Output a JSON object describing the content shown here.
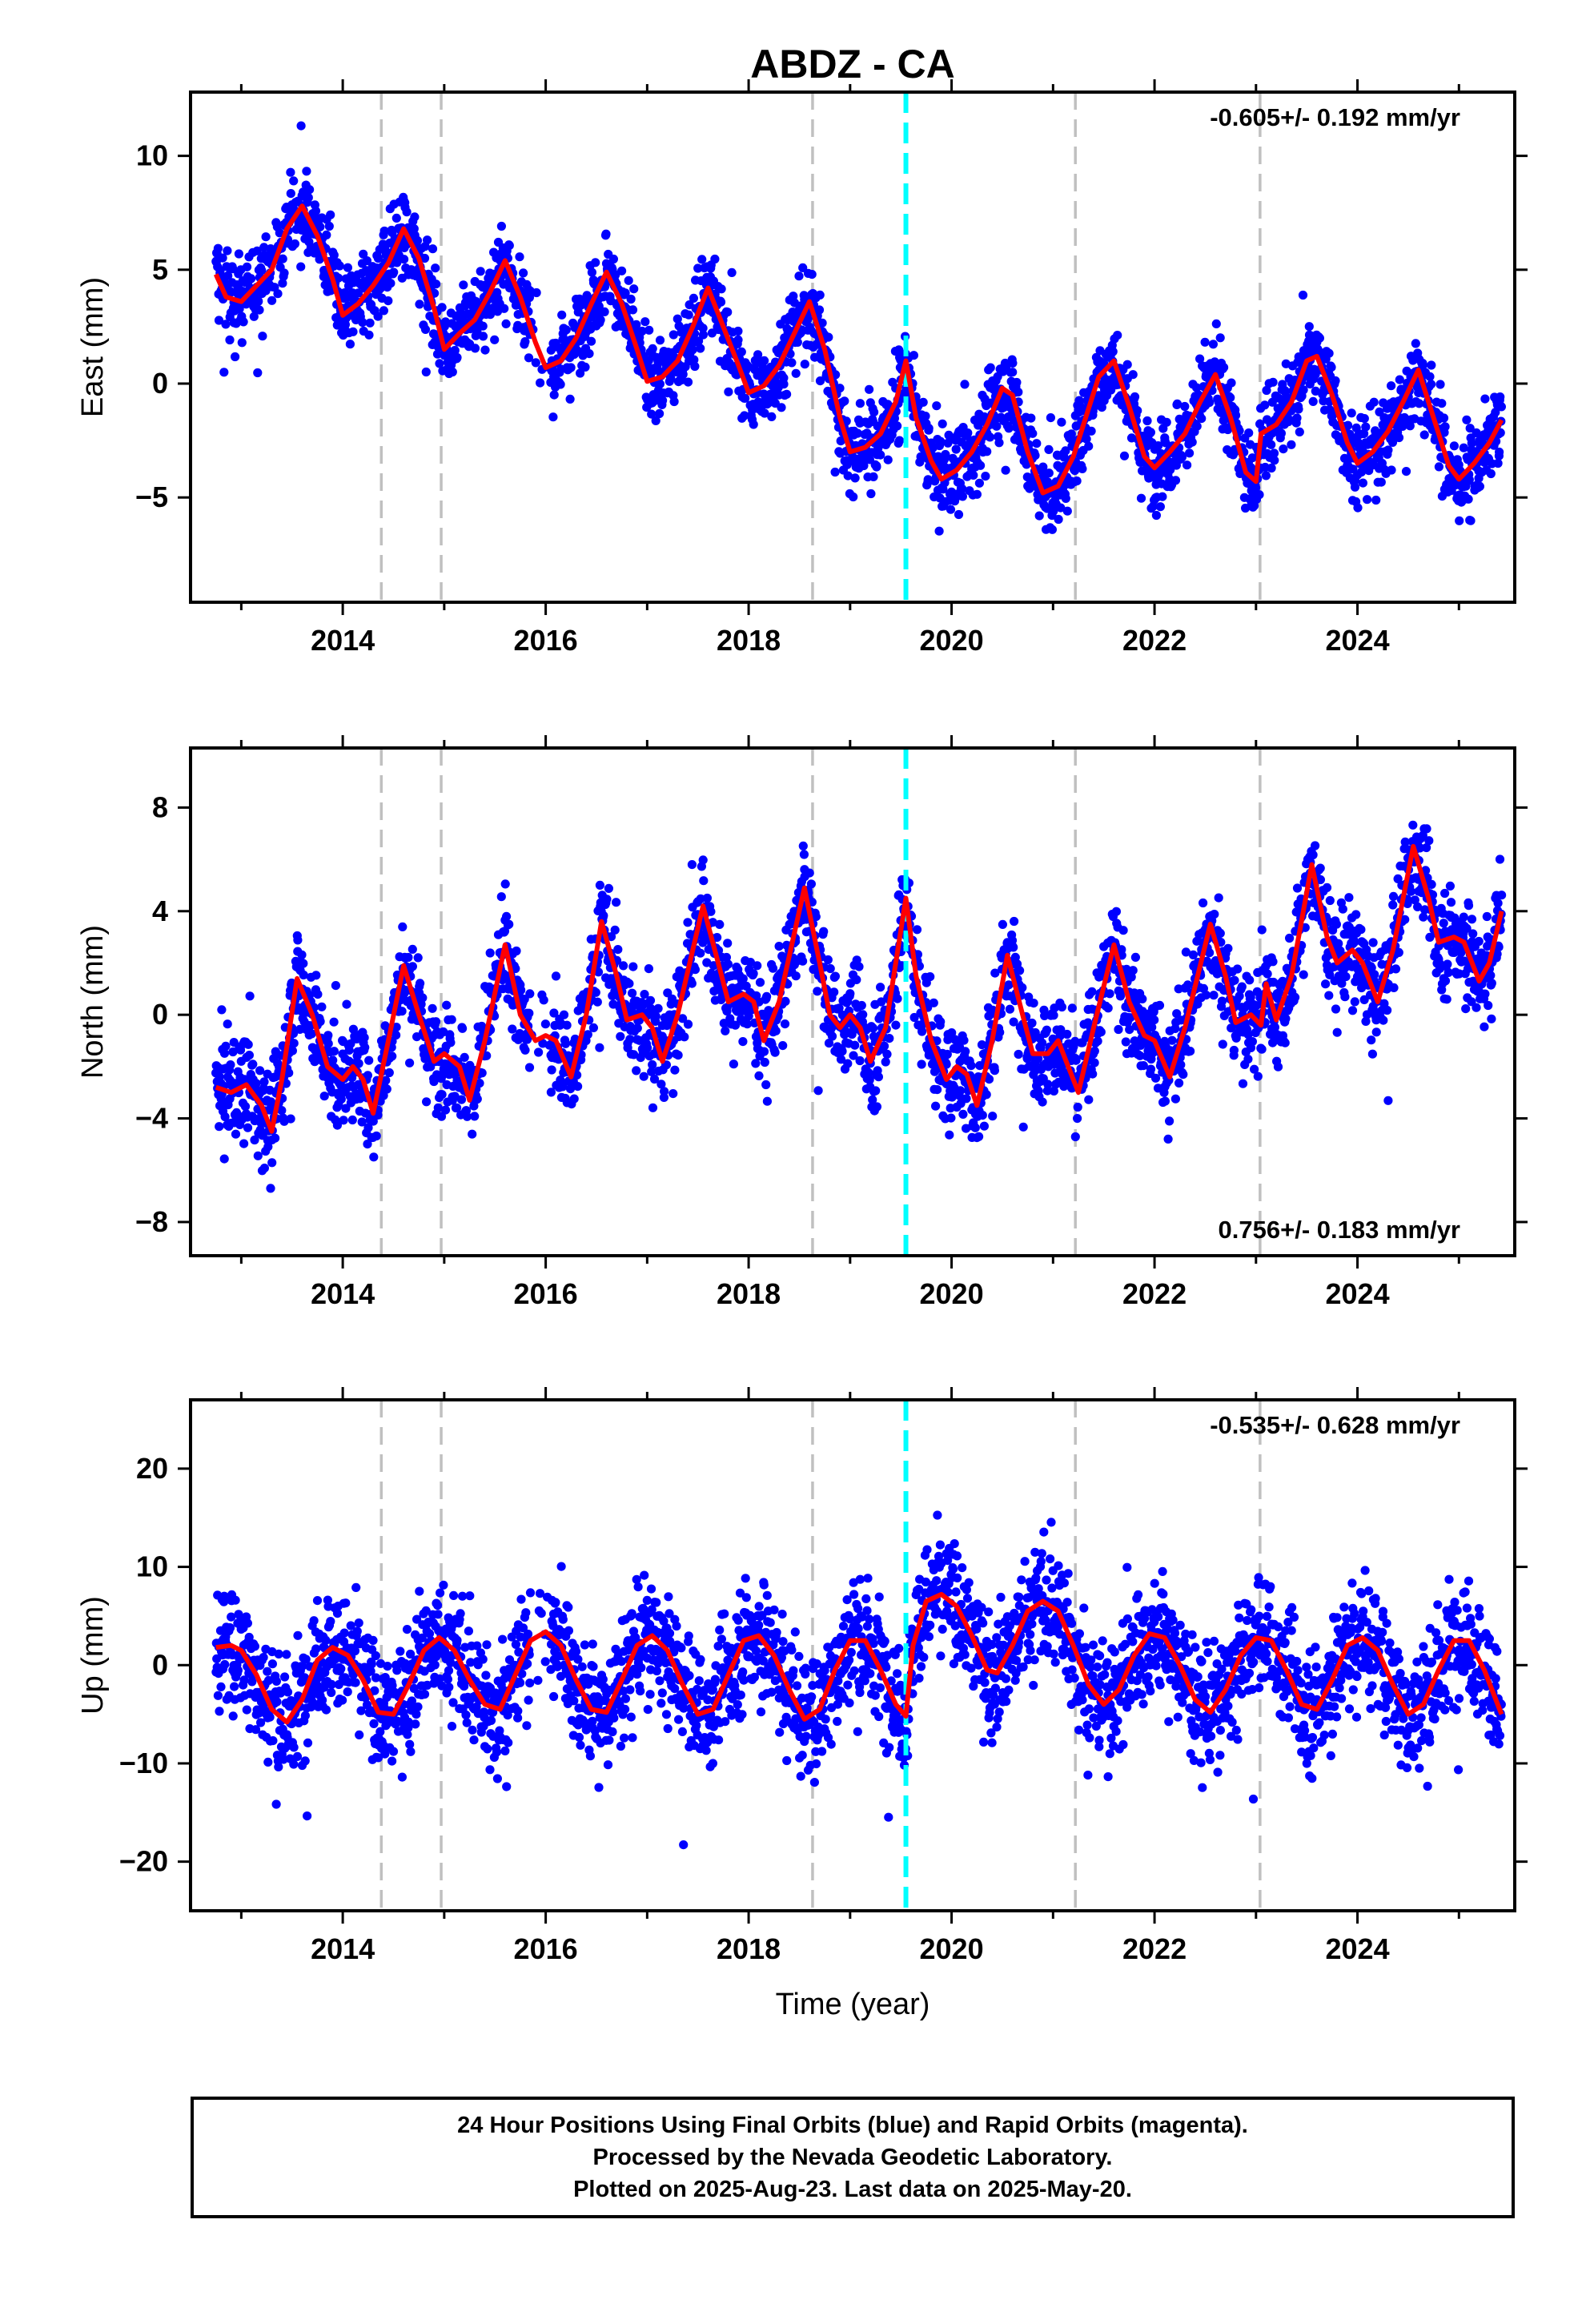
{
  "title": "ABDZ - CA",
  "xlabel": "Time (year)",
  "footer": {
    "lines": [
      "24 Hour Positions Using Final Orbits (blue) and Rapid Orbits (magenta).",
      "Processed by the Nevada Geodetic Laboratory.",
      "Plotted on 2025-Aug-23. Last data on 2025-May-20."
    ]
  },
  "colors": {
    "points": "#0000ff",
    "model": "#ff0000",
    "dashed_gray": "#c0c0c0",
    "dashed_cyan": "#00ffff"
  },
  "chart_data": [
    {
      "type": "scatter",
      "panel": "east",
      "ylabel": "East (mm)",
      "xlim": [
        2012.5,
        2025.55
      ],
      "ylim": [
        -9.6,
        12.8
      ],
      "xticks": [
        2014,
        2016,
        2018,
        2020,
        2022,
        2024
      ],
      "yticks": [
        -5,
        0,
        5,
        10
      ],
      "annotation": "-0.605+/- 0.192 mm/yr",
      "annotation_position": "top-right",
      "dashed_gray_lines": [
        2014.38,
        2014.97,
        2018.63,
        2021.22,
        2023.04
      ],
      "dashed_cyan_lines": [
        2019.55
      ],
      "model_line": [
        [
          2012.75,
          4.8
        ],
        [
          2012.85,
          3.8
        ],
        [
          2013.0,
          3.6
        ],
        [
          2013.15,
          4.3
        ],
        [
          2013.3,
          5.0
        ],
        [
          2013.45,
          6.8
        ],
        [
          2013.6,
          7.8
        ],
        [
          2013.75,
          6.5
        ],
        [
          2013.9,
          4.6
        ],
        [
          2014.0,
          3.0
        ],
        [
          2014.15,
          3.5
        ],
        [
          2014.3,
          4.3
        ],
        [
          2014.45,
          5.3
        ],
        [
          2014.6,
          6.8
        ],
        [
          2014.75,
          5.5
        ],
        [
          2014.9,
          3.3
        ],
        [
          2015.0,
          1.5
        ],
        [
          2015.15,
          2.2
        ],
        [
          2015.3,
          2.8
        ],
        [
          2015.45,
          4.0
        ],
        [
          2015.6,
          5.4
        ],
        [
          2015.75,
          3.8
        ],
        [
          2015.9,
          1.8
        ],
        [
          2016.0,
          0.7
        ],
        [
          2016.15,
          1.0
        ],
        [
          2016.3,
          2.0
        ],
        [
          2016.45,
          3.5
        ],
        [
          2016.6,
          4.9
        ],
        [
          2016.75,
          3.5
        ],
        [
          2016.9,
          1.5
        ],
        [
          2017.0,
          0.1
        ],
        [
          2017.15,
          0.3
        ],
        [
          2017.3,
          1.0
        ],
        [
          2017.45,
          2.5
        ],
        [
          2017.6,
          4.2
        ],
        [
          2017.75,
          2.5
        ],
        [
          2017.9,
          0.8
        ],
        [
          2018.0,
          -0.4
        ],
        [
          2018.15,
          -0.1
        ],
        [
          2018.3,
          0.8
        ],
        [
          2018.45,
          2.2
        ],
        [
          2018.6,
          3.6
        ],
        [
          2018.75,
          1.5
        ],
        [
          2018.9,
          -1.5
        ],
        [
          2019.0,
          -3.0
        ],
        [
          2019.15,
          -2.8
        ],
        [
          2019.3,
          -2.2
        ],
        [
          2019.45,
          -0.8
        ],
        [
          2019.55,
          1.0
        ],
        [
          2019.65,
          -1.5
        ],
        [
          2019.8,
          -3.4
        ],
        [
          2019.9,
          -4.2
        ],
        [
          2020.05,
          -3.8
        ],
        [
          2020.2,
          -3.0
        ],
        [
          2020.35,
          -1.8
        ],
        [
          2020.5,
          -0.2
        ],
        [
          2020.6,
          -0.5
        ],
        [
          2020.75,
          -3.0
        ],
        [
          2020.9,
          -4.8
        ],
        [
          2021.05,
          -4.5
        ],
        [
          2021.2,
          -3.2
        ],
        [
          2021.3,
          -1.8
        ],
        [
          2021.45,
          0.3
        ],
        [
          2021.6,
          1.0
        ],
        [
          2021.75,
          -1.0
        ],
        [
          2021.9,
          -3.2
        ],
        [
          2022.0,
          -3.7
        ],
        [
          2022.15,
          -3.0
        ],
        [
          2022.3,
          -2.2
        ],
        [
          2022.45,
          -0.8
        ],
        [
          2022.6,
          0.4
        ],
        [
          2022.75,
          -1.5
        ],
        [
          2022.9,
          -3.9
        ],
        [
          2023.0,
          -4.3
        ],
        [
          2023.05,
          -2.2
        ],
        [
          2023.2,
          -1.8
        ],
        [
          2023.35,
          -0.8
        ],
        [
          2023.5,
          1.0
        ],
        [
          2023.6,
          1.2
        ],
        [
          2023.75,
          -0.5
        ],
        [
          2023.9,
          -2.6
        ],
        [
          2024.0,
          -3.5
        ],
        [
          2024.15,
          -3.0
        ],
        [
          2024.3,
          -2.1
        ],
        [
          2024.45,
          -0.8
        ],
        [
          2024.6,
          0.6
        ],
        [
          2024.75,
          -1.5
        ],
        [
          2024.9,
          -3.6
        ],
        [
          2025.0,
          -4.2
        ],
        [
          2025.15,
          -3.5
        ],
        [
          2025.3,
          -2.6
        ],
        [
          2025.42,
          -1.6
        ]
      ]
    },
    {
      "type": "scatter",
      "panel": "north",
      "ylabel": "North (mm)",
      "xlim": [
        2012.5,
        2025.55
      ],
      "ylim": [
        -9.3,
        10.3
      ],
      "xticks": [
        2014,
        2016,
        2018,
        2020,
        2022,
        2024
      ],
      "yticks": [
        -8,
        -4,
        0,
        4,
        8
      ],
      "annotation": "0.756+/- 0.183 mm/yr",
      "annotation_position": "bottom-right",
      "dashed_gray_lines": [
        2014.38,
        2014.97,
        2018.63,
        2021.22,
        2023.04
      ],
      "dashed_cyan_lines": [
        2019.55
      ],
      "model_line": [
        [
          2012.75,
          -2.8
        ],
        [
          2012.9,
          -3.0
        ],
        [
          2013.05,
          -2.7
        ],
        [
          2013.2,
          -3.5
        ],
        [
          2013.3,
          -4.5
        ],
        [
          2013.4,
          -2.5
        ],
        [
          2013.55,
          1.4
        ],
        [
          2013.7,
          0.0
        ],
        [
          2013.85,
          -2.0
        ],
        [
          2014.0,
          -2.5
        ],
        [
          2014.1,
          -2.0
        ],
        [
          2014.2,
          -2.5
        ],
        [
          2014.3,
          -3.8
        ],
        [
          2014.45,
          -1.0
        ],
        [
          2014.6,
          1.9
        ],
        [
          2014.75,
          0.0
        ],
        [
          2014.9,
          -1.8
        ],
        [
          2015.0,
          -1.5
        ],
        [
          2015.15,
          -2.0
        ],
        [
          2015.25,
          -3.3
        ],
        [
          2015.4,
          -1.0
        ],
        [
          2015.6,
          2.7
        ],
        [
          2015.75,
          0.0
        ],
        [
          2015.9,
          -1.0
        ],
        [
          2016.0,
          -0.8
        ],
        [
          2016.1,
          -1.0
        ],
        [
          2016.25,
          -2.4
        ],
        [
          2016.4,
          0.0
        ],
        [
          2016.55,
          3.6
        ],
        [
          2016.7,
          1.5
        ],
        [
          2016.8,
          -0.2
        ],
        [
          2016.95,
          0.0
        ],
        [
          2017.05,
          -0.5
        ],
        [
          2017.15,
          -1.8
        ],
        [
          2017.3,
          0.0
        ],
        [
          2017.55,
          4.2
        ],
        [
          2017.7,
          2.0
        ],
        [
          2017.8,
          0.5
        ],
        [
          2017.95,
          0.8
        ],
        [
          2018.05,
          0.5
        ],
        [
          2018.15,
          -1.0
        ],
        [
          2018.3,
          0.5
        ],
        [
          2018.55,
          4.9
        ],
        [
          2018.7,
          2.0
        ],
        [
          2018.8,
          0.0
        ],
        [
          2018.9,
          -0.5
        ],
        [
          2019.0,
          0.0
        ],
        [
          2019.1,
          -0.5
        ],
        [
          2019.2,
          -1.8
        ],
        [
          2019.35,
          -0.5
        ],
        [
          2019.55,
          4.5
        ],
        [
          2019.65,
          1.5
        ],
        [
          2019.8,
          -1.0
        ],
        [
          2019.95,
          -2.5
        ],
        [
          2020.05,
          -2.0
        ],
        [
          2020.15,
          -2.3
        ],
        [
          2020.25,
          -3.5
        ],
        [
          2020.4,
          -1.0
        ],
        [
          2020.55,
          2.3
        ],
        [
          2020.7,
          0.0
        ],
        [
          2020.8,
          -1.5
        ],
        [
          2020.95,
          -1.5
        ],
        [
          2021.05,
          -1.0
        ],
        [
          2021.15,
          -2.0
        ],
        [
          2021.25,
          -3.0
        ],
        [
          2021.4,
          -0.5
        ],
        [
          2021.6,
          2.7
        ],
        [
          2021.75,
          0.5
        ],
        [
          2021.9,
          -0.8
        ],
        [
          2022.0,
          -1.0
        ],
        [
          2022.15,
          -2.4
        ],
        [
          2022.3,
          -0.5
        ],
        [
          2022.55,
          3.5
        ],
        [
          2022.7,
          1.5
        ],
        [
          2022.8,
          -0.3
        ],
        [
          2022.95,
          0.0
        ],
        [
          2023.05,
          -0.4
        ],
        [
          2023.1,
          1.2
        ],
        [
          2023.2,
          -0.2
        ],
        [
          2023.35,
          1.5
        ],
        [
          2023.55,
          5.8
        ],
        [
          2023.7,
          3.0
        ],
        [
          2023.8,
          2.0
        ],
        [
          2023.95,
          2.5
        ],
        [
          2024.05,
          2.0
        ],
        [
          2024.2,
          0.5
        ],
        [
          2024.35,
          2.5
        ],
        [
          2024.55,
          6.5
        ],
        [
          2024.7,
          4.5
        ],
        [
          2024.8,
          2.8
        ],
        [
          2024.95,
          3.0
        ],
        [
          2025.05,
          2.8
        ],
        [
          2025.2,
          1.3
        ],
        [
          2025.3,
          2.0
        ],
        [
          2025.42,
          4.0
        ]
      ]
    },
    {
      "type": "scatter",
      "panel": "up",
      "ylabel": "Up (mm)",
      "xlabel": "Time (year)",
      "xlim": [
        2012.5,
        2025.55
      ],
      "ylim": [
        -25,
        27
      ],
      "xticks": [
        2014,
        2016,
        2018,
        2020,
        2022,
        2024
      ],
      "yticks": [
        -20,
        -10,
        0,
        10,
        20
      ],
      "annotation": "-0.535+/- 0.628 mm/yr",
      "annotation_position": "top-right",
      "dashed_gray_lines": [
        2014.38,
        2014.97,
        2018.63,
        2021.22,
        2023.04
      ],
      "dashed_cyan_lines": [
        2019.55
      ],
      "model_line": [
        [
          2012.75,
          1.8
        ],
        [
          2012.9,
          2.0
        ],
        [
          2013.0,
          1.5
        ],
        [
          2013.15,
          -1.0
        ],
        [
          2013.3,
          -4.5
        ],
        [
          2013.45,
          -5.8
        ],
        [
          2013.6,
          -3.5
        ],
        [
          2013.75,
          0.5
        ],
        [
          2013.9,
          1.8
        ],
        [
          2014.05,
          1.0
        ],
        [
          2014.2,
          -1.5
        ],
        [
          2014.35,
          -4.8
        ],
        [
          2014.5,
          -5.0
        ],
        [
          2014.65,
          -2.0
        ],
        [
          2014.8,
          1.5
        ],
        [
          2014.95,
          2.8
        ],
        [
          2015.1,
          1.5
        ],
        [
          2015.25,
          -1.5
        ],
        [
          2015.4,
          -4.0
        ],
        [
          2015.55,
          -4.5
        ],
        [
          2015.7,
          -1.0
        ],
        [
          2015.85,
          2.5
        ],
        [
          2016.0,
          3.4
        ],
        [
          2016.15,
          2.0
        ],
        [
          2016.3,
          -1.5
        ],
        [
          2016.45,
          -4.5
        ],
        [
          2016.6,
          -4.8
        ],
        [
          2016.75,
          -1.5
        ],
        [
          2016.9,
          2.0
        ],
        [
          2017.05,
          3.0
        ],
        [
          2017.2,
          1.5
        ],
        [
          2017.35,
          -2.0
        ],
        [
          2017.5,
          -5.0
        ],
        [
          2017.65,
          -4.5
        ],
        [
          2017.8,
          -1.0
        ],
        [
          2017.95,
          2.5
        ],
        [
          2018.1,
          3.0
        ],
        [
          2018.25,
          1.0
        ],
        [
          2018.4,
          -2.5
        ],
        [
          2018.55,
          -5.5
        ],
        [
          2018.7,
          -4.5
        ],
        [
          2018.85,
          -0.5
        ],
        [
          2019.0,
          2.5
        ],
        [
          2019.15,
          2.5
        ],
        [
          2019.3,
          -0.5
        ],
        [
          2019.45,
          -4.0
        ],
        [
          2019.55,
          -5.2
        ],
        [
          2019.62,
          2.0
        ],
        [
          2019.75,
          6.5
        ],
        [
          2019.9,
          7.2
        ],
        [
          2020.05,
          6.0
        ],
        [
          2020.2,
          3.0
        ],
        [
          2020.35,
          -0.5
        ],
        [
          2020.45,
          -0.8
        ],
        [
          2020.6,
          2.0
        ],
        [
          2020.75,
          5.5
        ],
        [
          2020.9,
          6.5
        ],
        [
          2021.05,
          5.5
        ],
        [
          2021.2,
          2.0
        ],
        [
          2021.35,
          -2.0
        ],
        [
          2021.5,
          -4.0
        ],
        [
          2021.65,
          -2.5
        ],
        [
          2021.8,
          1.0
        ],
        [
          2021.95,
          3.2
        ],
        [
          2022.1,
          2.8
        ],
        [
          2022.25,
          0.0
        ],
        [
          2022.4,
          -3.5
        ],
        [
          2022.55,
          -4.8
        ],
        [
          2022.7,
          -2.5
        ],
        [
          2022.85,
          1.0
        ],
        [
          2023.0,
          2.8
        ],
        [
          2023.15,
          2.5
        ],
        [
          2023.3,
          -0.5
        ],
        [
          2023.45,
          -4.0
        ],
        [
          2023.6,
          -4.5
        ],
        [
          2023.75,
          -1.5
        ],
        [
          2023.9,
          2.0
        ],
        [
          2024.05,
          2.8
        ],
        [
          2024.2,
          1.5
        ],
        [
          2024.35,
          -2.0
        ],
        [
          2024.5,
          -5.0
        ],
        [
          2024.65,
          -4.0
        ],
        [
          2024.8,
          -0.5
        ],
        [
          2024.95,
          2.5
        ],
        [
          2025.1,
          2.5
        ],
        [
          2025.25,
          -0.5
        ],
        [
          2025.42,
          -5.0
        ]
      ]
    }
  ]
}
